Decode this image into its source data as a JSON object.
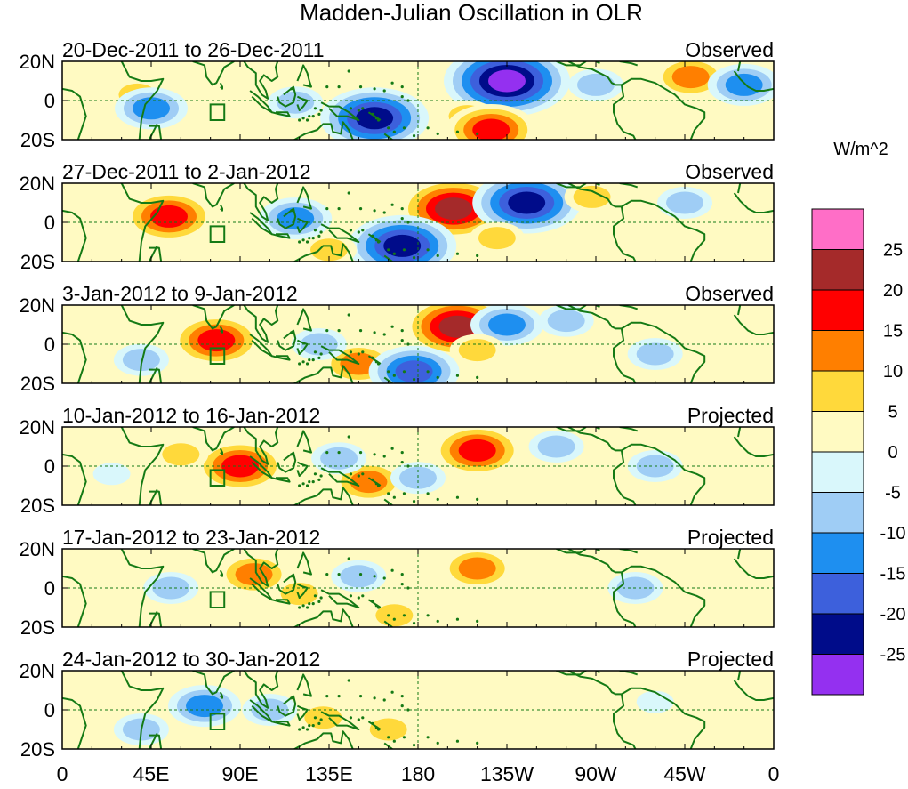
{
  "chart_data": {
    "type": "heatmap",
    "title": "Madden-Julian Oscillation in OLR",
    "variable": "OLR anomaly",
    "units": "W/m^2",
    "colorbar": {
      "label": "W/m^2",
      "levels": [
        25,
        20,
        15,
        10,
        5,
        0,
        -5,
        -10,
        -15,
        -20,
        -25
      ],
      "bins": [
        {
          "range": "> 25",
          "color": "#ff6ec7"
        },
        {
          "range": "20 to 25",
          "color": "#a52a2a"
        },
        {
          "range": "15 to 20",
          "color": "#ff0000"
        },
        {
          "range": "10 to 15",
          "color": "#ff7f00"
        },
        {
          "range": "5 to 10",
          "color": "#ffd93b"
        },
        {
          "range": "0 to 5",
          "color": "#fffac2"
        },
        {
          "range": "-5 to 0",
          "color": "#d9f7fb"
        },
        {
          "range": "-10 to -5",
          "color": "#9fcdf5"
        },
        {
          "range": "-15 to -10",
          "color": "#1e8ff0"
        },
        {
          "range": "-20 to -15",
          "color": "#3d60dc"
        },
        {
          "range": "-25 to -20",
          "color": "#000c8a"
        },
        {
          "range": "< -25",
          "color": "#9430f0"
        }
      ]
    },
    "xaxis": {
      "range_deg_east": [
        0,
        360
      ],
      "ticks": [
        {
          "lon": 0,
          "label": "0"
        },
        {
          "lon": 45,
          "label": "45E"
        },
        {
          "lon": 90,
          "label": "90E"
        },
        {
          "lon": 135,
          "label": "135E"
        },
        {
          "lon": 180,
          "label": "180"
        },
        {
          "lon": 225,
          "label": "135W"
        },
        {
          "lon": 270,
          "label": "90W"
        },
        {
          "lon": 315,
          "label": "45W"
        },
        {
          "lon": 360,
          "label": "0"
        }
      ]
    },
    "yaxis": {
      "range_deg": [
        -20,
        20
      ],
      "ticks": [
        {
          "lat": 20,
          "label": "20N"
        },
        {
          "lat": 0,
          "label": "0"
        },
        {
          "lat": -20,
          "label": "20S"
        }
      ]
    },
    "reference_lines": {
      "lon": 180,
      "lat": 0
    },
    "box_marker": {
      "lon": [
        75,
        82
      ],
      "lat": [
        -10,
        -2
      ]
    },
    "panels": [
      {
        "period": "20-Dec-2011 to 26-Dec-2011",
        "status": "Observed",
        "anomalies": [
          {
            "lon": 208,
            "lat": 8,
            "value": 14
          },
          {
            "lon": 225,
            "lat": 10,
            "value": -27
          },
          {
            "lon": 158,
            "lat": -9,
            "value": -21
          },
          {
            "lon": 205,
            "lat": -8,
            "value": 8
          },
          {
            "lon": 217,
            "lat": -15,
            "value": 16
          },
          {
            "lon": 38,
            "lat": 3,
            "value": 9
          },
          {
            "lon": 45,
            "lat": -4,
            "value": -11
          },
          {
            "lon": 118,
            "lat": -1,
            "value": -9
          },
          {
            "lon": 318,
            "lat": 12,
            "value": 12
          },
          {
            "lon": 345,
            "lat": 8,
            "value": -14
          },
          {
            "lon": 270,
            "lat": 8,
            "value": -6
          }
        ]
      },
      {
        "period": "27-Dec-2011 to 2-Jan-2012",
        "status": "Observed",
        "anomalies": [
          {
            "lon": 198,
            "lat": 7,
            "value": 21
          },
          {
            "lon": 235,
            "lat": 10,
            "value": -22
          },
          {
            "lon": 54,
            "lat": 3,
            "value": 16
          },
          {
            "lon": 172,
            "lat": -12,
            "value": -22
          },
          {
            "lon": 135,
            "lat": -14,
            "value": 9
          },
          {
            "lon": 118,
            "lat": 2,
            "value": -11
          },
          {
            "lon": 315,
            "lat": 10,
            "value": -9
          },
          {
            "lon": 268,
            "lat": 13,
            "value": 7
          },
          {
            "lon": 220,
            "lat": -8,
            "value": 6
          },
          {
            "lon": 12,
            "lat": 1,
            "value": 4
          }
        ]
      },
      {
        "period": "3-Jan-2012 to 9-Jan-2012",
        "status": "Observed",
        "anomalies": [
          {
            "lon": 200,
            "lat": 9,
            "value": 22
          },
          {
            "lon": 78,
            "lat": 2,
            "value": 19
          },
          {
            "lon": 150,
            "lat": -10,
            "value": 15
          },
          {
            "lon": 178,
            "lat": -14,
            "value": -17
          },
          {
            "lon": 225,
            "lat": 10,
            "value": -11
          },
          {
            "lon": 130,
            "lat": 0,
            "value": -9
          },
          {
            "lon": 255,
            "lat": 12,
            "value": -8
          },
          {
            "lon": 40,
            "lat": -8,
            "value": -6
          },
          {
            "lon": 300,
            "lat": -5,
            "value": -6
          },
          {
            "lon": 210,
            "lat": -3,
            "value": 7
          }
        ]
      },
      {
        "period": "10-Jan-2012 to 16-Jan-2012",
        "status": "Projected",
        "anomalies": [
          {
            "lon": 90,
            "lat": 0,
            "value": 18
          },
          {
            "lon": 60,
            "lat": 6,
            "value": 8
          },
          {
            "lon": 210,
            "lat": 8,
            "value": 16
          },
          {
            "lon": 155,
            "lat": -8,
            "value": 12
          },
          {
            "lon": 140,
            "lat": 4,
            "value": -7
          },
          {
            "lon": 180,
            "lat": -6,
            "value": -8
          },
          {
            "lon": 300,
            "lat": 0,
            "value": -7
          },
          {
            "lon": 25,
            "lat": -4,
            "value": -5
          },
          {
            "lon": 250,
            "lat": 10,
            "value": -6
          }
        ]
      },
      {
        "period": "17-Jan-2012 to 23-Jan-2012",
        "status": "Projected",
        "anomalies": [
          {
            "lon": 97,
            "lat": 7,
            "value": 13
          },
          {
            "lon": 120,
            "lat": -3,
            "value": 7
          },
          {
            "lon": 55,
            "lat": 0,
            "value": -9
          },
          {
            "lon": 210,
            "lat": 10,
            "value": 11
          },
          {
            "lon": 168,
            "lat": -14,
            "value": 9
          },
          {
            "lon": 150,
            "lat": 6,
            "value": -6
          },
          {
            "lon": 290,
            "lat": 0,
            "value": -6
          }
        ]
      },
      {
        "period": "24-Jan-2012 to 30-Jan-2012",
        "status": "Projected",
        "anomalies": [
          {
            "lon": 72,
            "lat": 2,
            "value": -11
          },
          {
            "lon": 105,
            "lat": 0,
            "value": -6
          },
          {
            "lon": 132,
            "lat": -4,
            "value": 8
          },
          {
            "lon": 165,
            "lat": -10,
            "value": 7
          },
          {
            "lon": 230,
            "lat": 6,
            "value": 5
          },
          {
            "lon": 300,
            "lat": 4,
            "value": -5
          },
          {
            "lon": 40,
            "lat": -10,
            "value": -7
          }
        ]
      }
    ]
  }
}
